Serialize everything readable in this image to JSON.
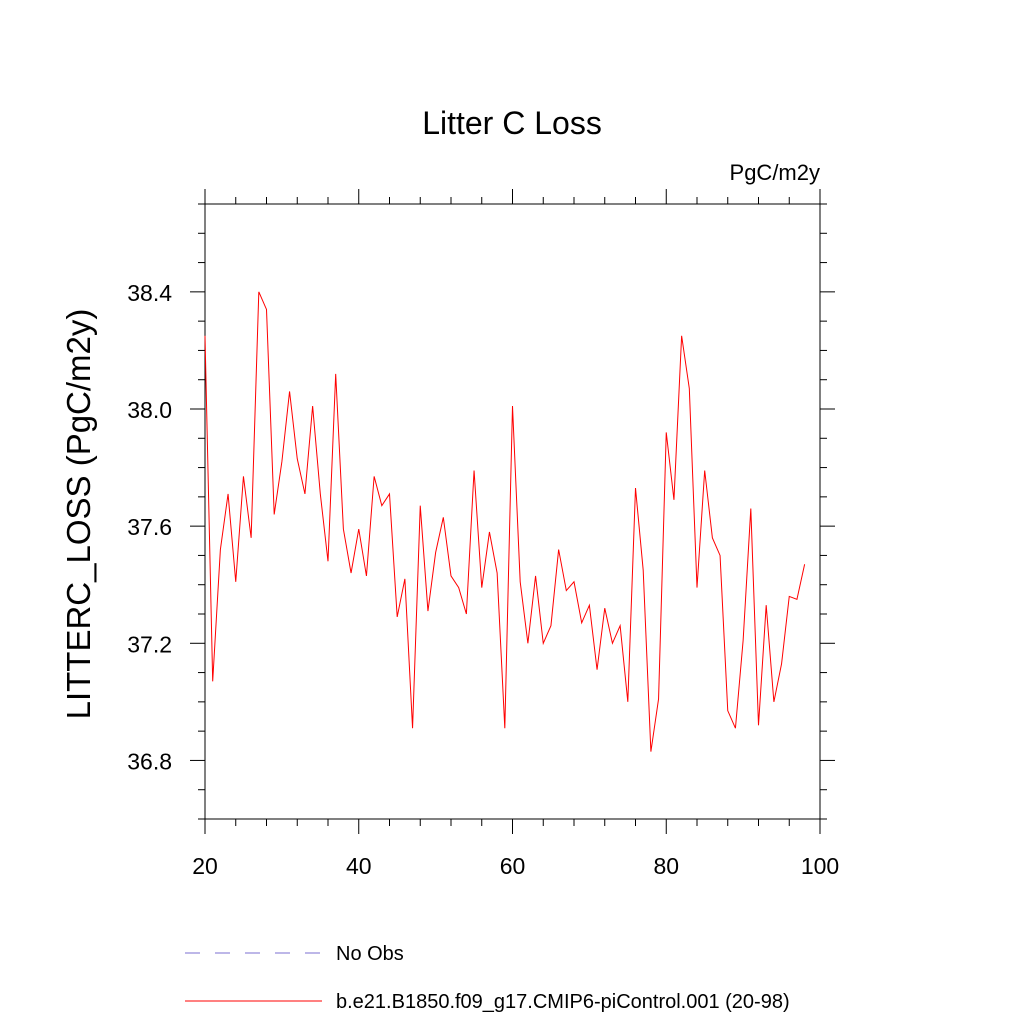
{
  "chart_data": {
    "type": "line",
    "title": "Litter C Loss",
    "units": "PgC/m2y",
    "ylabel": "LITTERC_LOSS  (PgC/m2y)",
    "xlabel": "",
    "xlim": [
      20,
      100
    ],
    "ylim": [
      36.6,
      38.7
    ],
    "x_ticks": [
      "20",
      "40",
      "60",
      "80",
      "100"
    ],
    "y_ticks": [
      "36.8",
      "37.2",
      "37.6",
      "38.0",
      "38.4"
    ],
    "grid": false,
    "legend_position": "bottom",
    "series": [
      {
        "name": "No Obs",
        "color": "#7b6fd0",
        "style": "dashed",
        "x": [],
        "y": []
      },
      {
        "name": "b.e21.B1850.f09_g17.CMIP6-piControl.001 (20-98)",
        "color": "#ff0000",
        "style": "solid",
        "x": [
          20,
          21,
          22,
          23,
          24,
          25,
          26,
          27,
          28,
          29,
          30,
          31,
          32,
          33,
          34,
          35,
          36,
          37,
          38,
          39,
          40,
          41,
          42,
          43,
          44,
          45,
          46,
          47,
          48,
          49,
          50,
          51,
          52,
          53,
          54,
          55,
          56,
          57,
          58,
          59,
          60,
          61,
          62,
          63,
          64,
          65,
          66,
          67,
          68,
          69,
          70,
          71,
          72,
          73,
          74,
          75,
          76,
          77,
          78,
          79,
          80,
          81,
          82,
          83,
          84,
          85,
          86,
          87,
          88,
          89,
          90,
          91,
          92,
          93,
          94,
          95,
          96,
          97,
          98
        ],
        "y": [
          38.25,
          37.07,
          37.52,
          37.71,
          37.41,
          37.77,
          37.56,
          38.4,
          38.34,
          37.64,
          37.82,
          38.06,
          37.83,
          37.71,
          38.01,
          37.71,
          37.48,
          38.12,
          37.59,
          37.44,
          37.59,
          37.43,
          37.77,
          37.67,
          37.71,
          37.29,
          37.42,
          36.91,
          37.67,
          37.31,
          37.51,
          37.63,
          37.43,
          37.39,
          37.3,
          37.79,
          37.39,
          37.58,
          37.44,
          36.91,
          38.01,
          37.41,
          37.2,
          37.43,
          37.2,
          37.26,
          37.52,
          37.38,
          37.41,
          37.27,
          37.33,
          37.11,
          37.32,
          37.2,
          37.26,
          37.0,
          37.73,
          37.45,
          36.83,
          37.01,
          37.92,
          37.69,
          38.25,
          38.07,
          37.39,
          37.79,
          37.56,
          37.5,
          36.97,
          36.91,
          37.21,
          37.66,
          36.92,
          37.33,
          37.0,
          37.13,
          37.36,
          37.35,
          37.47
        ]
      }
    ]
  }
}
